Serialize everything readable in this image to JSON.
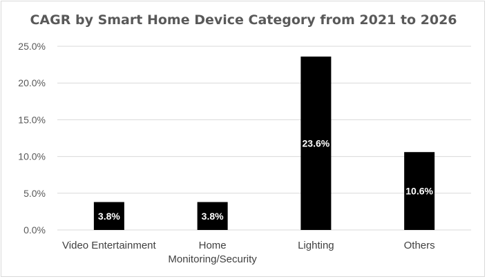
{
  "chart_data": {
    "type": "bar",
    "title": "CAGR by Smart Home Device Category from 2021 to 2026",
    "categories": [
      [
        "Video Entertainment"
      ],
      [
        "Home",
        "Monitoring/Security"
      ],
      [
        "Lighting"
      ],
      [
        "Others"
      ]
    ],
    "values": [
      3.8,
      3.8,
      23.6,
      10.6
    ],
    "data_labels": [
      "3.8%",
      "3.8%",
      "23.6%",
      "10.6%"
    ],
    "yticks": [
      "0.0%",
      "5.0%",
      "10.0%",
      "15.0%",
      "20.0%",
      "25.0%"
    ],
    "ylim": [
      0,
      25
    ],
    "grid": true,
    "legend": "none",
    "bar_color": "#000000",
    "grid_color": "#d9d9d9"
  }
}
